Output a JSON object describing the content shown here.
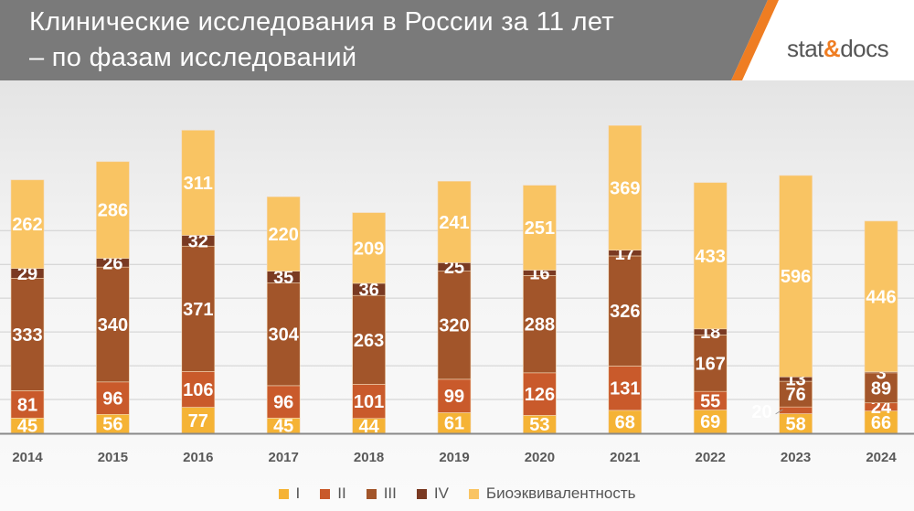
{
  "header": {
    "title_line1": "Клинические исследования в России за 11 лет",
    "title_line2": "– по фазам исследований",
    "logo_text": "stat&docs"
  },
  "colors": {
    "I": "#f5b335",
    "II": "#c95a2b",
    "III": "#a2552a",
    "IV": "#7a3a22",
    "Bio": "#f9c463",
    "header_gray": "#7a7a7a",
    "accent": "#ef7d22"
  },
  "chart_data": {
    "type": "bar",
    "stacked": true,
    "categories": [
      "2014",
      "2015",
      "2016",
      "2017",
      "2018",
      "2019",
      "2020",
      "2021",
      "2022",
      "2023",
      "2024"
    ],
    "series": [
      {
        "name": "I",
        "values": [
          45,
          56,
          77,
          45,
          44,
          61,
          53,
          68,
          69,
          58,
          66
        ]
      },
      {
        "name": "II",
        "values": [
          81,
          96,
          106,
          96,
          101,
          99,
          126,
          131,
          55,
          20,
          24
        ]
      },
      {
        "name": "III",
        "values": [
          333,
          340,
          371,
          304,
          263,
          320,
          288,
          326,
          167,
          76,
          89
        ]
      },
      {
        "name": "IV",
        "values": [
          29,
          26,
          32,
          35,
          36,
          25,
          16,
          17,
          18,
          13,
          3
        ]
      },
      {
        "name": "Биоэквивалентность",
        "values": [
          262,
          286,
          311,
          220,
          209,
          241,
          251,
          369,
          433,
          596,
          446
        ]
      }
    ],
    "legend": "bottom",
    "grid": true,
    "gridline_step": 100
  }
}
